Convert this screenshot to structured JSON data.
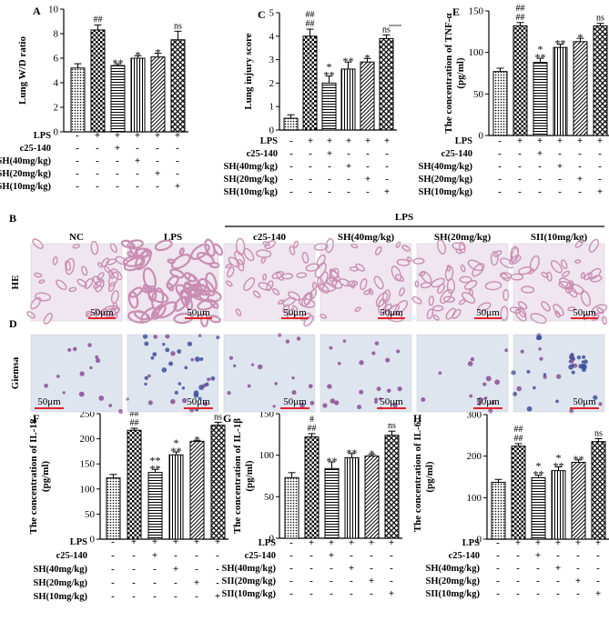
{
  "chart_data": [
    {
      "id": "A",
      "type": "bar",
      "panel_label": "A",
      "ylabel": "Lung W/D ratio",
      "ylim": [
        0,
        10
      ],
      "yticks": [
        0,
        2,
        4,
        6,
        8,
        10
      ],
      "values": [
        5.2,
        8.3,
        5.4,
        6.0,
        6.1,
        7.5
      ],
      "errors": [
        0.35,
        0.4,
        0.15,
        0.2,
        0.3,
        0.7
      ],
      "sig_top": [
        "",
        "##",
        "",
        "",
        "",
        "ns"
      ],
      "sig_mid": [
        "",
        "",
        "**",
        "*",
        "*",
        ""
      ]
    },
    {
      "id": "C",
      "type": "bar",
      "panel_label": "C",
      "ylabel": "Lung injury score",
      "ylim": [
        0,
        5
      ],
      "yticks": [
        0,
        1,
        2,
        3,
        4,
        5
      ],
      "values": [
        0.5,
        4.0,
        2.0,
        2.6,
        2.9,
        3.9
      ],
      "errors": [
        0.15,
        0.3,
        0.3,
        0.3,
        0.15,
        0.15
      ],
      "sig_top": [
        "",
        "##",
        "",
        "",
        "",
        "ns"
      ],
      "sig_top2": [
        "",
        "##",
        "",
        "",
        "",
        ""
      ],
      "sig_mid": [
        "",
        "",
        "*",
        "**",
        "*",
        ""
      ],
      "sig_mid2": [
        "",
        "",
        "**",
        "",
        "",
        ""
      ]
    },
    {
      "id": "E",
      "type": "bar",
      "panel_label": "E",
      "ylabel": "The concentration of TNF-α (pg/ml)",
      "ylim": [
        0,
        150
      ],
      "yticks": [
        0,
        50,
        100,
        150
      ],
      "values": [
        77,
        132,
        88,
        106,
        113,
        132
      ],
      "errors": [
        4,
        4,
        5,
        4,
        4,
        3
      ],
      "sig_top": [
        "",
        "##",
        "",
        "",
        "",
        "ns"
      ],
      "sig_top2": [
        "",
        "##",
        "",
        "",
        "",
        ""
      ],
      "sig_mid": [
        "",
        "",
        "*",
        "**",
        "*",
        ""
      ],
      "sig_mid2": [
        "",
        "",
        "**",
        "",
        "",
        ""
      ]
    },
    {
      "id": "F",
      "type": "bar",
      "panel_label": "F",
      "ylabel": "The concentration of IL-18 (pg/ml)",
      "ylim": [
        0,
        250
      ],
      "yticks": [
        0,
        50,
        100,
        150,
        200,
        250
      ],
      "values": [
        122,
        217,
        133,
        168,
        195,
        227
      ],
      "errors": [
        7,
        4,
        6,
        6,
        2,
        6
      ],
      "sig_top": [
        "",
        "##",
        "",
        "",
        "",
        "ns"
      ],
      "sig_top2": [
        "",
        "##",
        "",
        "",
        "",
        ""
      ],
      "sig_mid": [
        "",
        "",
        "**",
        "*",
        "*",
        ""
      ],
      "sig_mid2": [
        "",
        "",
        "**",
        "**",
        "",
        ""
      ]
    },
    {
      "id": "G",
      "type": "bar",
      "panel_label": "G",
      "ylabel": "The concentration of IL-1β (pg/ml)",
      "ylim": [
        0,
        150
      ],
      "yticks": [
        0,
        50,
        100,
        150
      ],
      "values": [
        73,
        122,
        84,
        97,
        99,
        124
      ],
      "errors": [
        6,
        4,
        8,
        5,
        2,
        5
      ],
      "sig_top": [
        "",
        "#",
        "",
        "",
        "",
        "ns"
      ],
      "sig_top2": [
        "",
        "##",
        "",
        "",
        "",
        ""
      ],
      "sig_mid": [
        "",
        "",
        "**",
        "**",
        "*",
        ""
      ]
    },
    {
      "id": "H",
      "type": "bar",
      "panel_label": "H",
      "ylabel": "The concentration of IL-6 (pg/ml)",
      "ylim": [
        0,
        300
      ],
      "yticks": [
        0,
        100,
        200,
        300
      ],
      "values": [
        137,
        224,
        148,
        165,
        185,
        235
      ],
      "errors": [
        7,
        6,
        6,
        9,
        6,
        7
      ],
      "sig_top": [
        "",
        "##",
        "",
        "",
        "",
        "ns"
      ],
      "sig_top2": [
        "",
        "##",
        "",
        "",
        "",
        ""
      ],
      "sig_mid": [
        "",
        "",
        "*",
        "*",
        "**",
        ""
      ],
      "sig_mid2": [
        "",
        "",
        "**",
        "**",
        "",
        ""
      ]
    }
  ],
  "treatment_table": {
    "rows": [
      {
        "label": "LPS",
        "marks": [
          "-",
          "+",
          "+",
          "+",
          "+",
          "+"
        ]
      },
      {
        "label": "c25-140",
        "marks": [
          "-",
          "-",
          "+",
          "-",
          "-",
          "-"
        ]
      },
      {
        "label": "SH(40mg/kg)",
        "marks": [
          "-",
          "-",
          "-",
          "+",
          "-",
          "-"
        ]
      },
      {
        "label": "SH(20mg/kg)",
        "marks": [
          "-",
          "-",
          "-",
          "-",
          "+",
          "-"
        ]
      },
      {
        "label": "SH(10mg/kg)",
        "marks": [
          "-",
          "-",
          "-",
          "-",
          "-",
          "+"
        ]
      }
    ],
    "alt_labels": {
      "sh20": "SII(20mg/kg)",
      "sh10": "SII(10mg/kg)"
    }
  },
  "micrographs": {
    "panel_B_label": "B",
    "panel_D_label": "D",
    "lps_bracket_label": "LPS",
    "column_headers": [
      "NC",
      "LPS",
      "c25-140",
      "SH(40mg/kg)",
      "SH(20mg/kg)",
      "SII(10mg/kg)"
    ],
    "row_labels": [
      "HE",
      "Giemsa"
    ],
    "scale_bar": "50μm",
    "colors": {
      "he_bg": "#efe6ef",
      "he_tissue": "#c98db2",
      "giemsa_bg": "#dfe5ef",
      "giemsa_cell": "#8a4f94",
      "giemsa_blue": "#3d4f9a",
      "scale": "#e4232a"
    }
  },
  "colors": {
    "bar_stroke": "#000000",
    "background": "#ffffff"
  }
}
